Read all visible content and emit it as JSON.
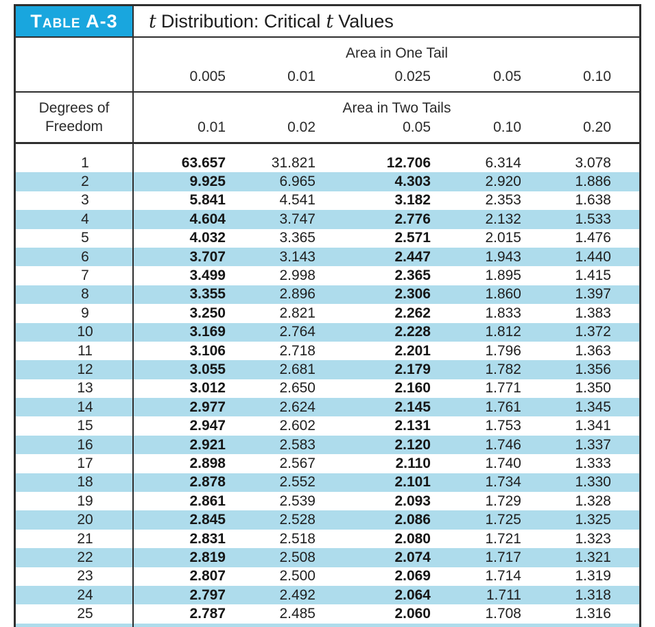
{
  "colors": {
    "badge_bg": "#19a6de",
    "stripe": "#aedcec",
    "border": "#2e2e2e",
    "text": "#232323"
  },
  "table": {
    "badge": "Table A-3",
    "title": {
      "t1": "t",
      "mid": "Distribution: Critical",
      "t2": "t",
      "end": "Values"
    },
    "header": {
      "one_tail_label": "Area in One Tail",
      "one_tail_values": [
        "0.005",
        "0.01",
        "0.025",
        "0.05",
        "0.10"
      ],
      "df_label": [
        "Degrees of",
        "Freedom"
      ],
      "two_tail_label": "Area in Two Tails",
      "two_tail_values": [
        "0.01",
        "0.02",
        "0.05",
        "0.10",
        "0.20"
      ]
    },
    "columns_bold": [
      true,
      false,
      true,
      false,
      false
    ],
    "rows": [
      {
        "df": "1",
        "values": [
          "63.657",
          "31.821",
          "12.706",
          "6.314",
          "3.078"
        ]
      },
      {
        "df": "2",
        "values": [
          "9.925",
          "6.965",
          "4.303",
          "2.920",
          "1.886"
        ]
      },
      {
        "df": "3",
        "values": [
          "5.841",
          "4.541",
          "3.182",
          "2.353",
          "1.638"
        ]
      },
      {
        "df": "4",
        "values": [
          "4.604",
          "3.747",
          "2.776",
          "2.132",
          "1.533"
        ]
      },
      {
        "df": "5",
        "values": [
          "4.032",
          "3.365",
          "2.571",
          "2.015",
          "1.476"
        ]
      },
      {
        "df": "6",
        "values": [
          "3.707",
          "3.143",
          "2.447",
          "1.943",
          "1.440"
        ]
      },
      {
        "df": "7",
        "values": [
          "3.499",
          "2.998",
          "2.365",
          "1.895",
          "1.415"
        ]
      },
      {
        "df": "8",
        "values": [
          "3.355",
          "2.896",
          "2.306",
          "1.860",
          "1.397"
        ]
      },
      {
        "df": "9",
        "values": [
          "3.250",
          "2.821",
          "2.262",
          "1.833",
          "1.383"
        ]
      },
      {
        "df": "10",
        "values": [
          "3.169",
          "2.764",
          "2.228",
          "1.812",
          "1.372"
        ]
      },
      {
        "df": "11",
        "values": [
          "3.106",
          "2.718",
          "2.201",
          "1.796",
          "1.363"
        ]
      },
      {
        "df": "12",
        "values": [
          "3.055",
          "2.681",
          "2.179",
          "1.782",
          "1.356"
        ]
      },
      {
        "df": "13",
        "values": [
          "3.012",
          "2.650",
          "2.160",
          "1.771",
          "1.350"
        ]
      },
      {
        "df": "14",
        "values": [
          "2.977",
          "2.624",
          "2.145",
          "1.761",
          "1.345"
        ]
      },
      {
        "df": "15",
        "values": [
          "2.947",
          "2.602",
          "2.131",
          "1.753",
          "1.341"
        ]
      },
      {
        "df": "16",
        "values": [
          "2.921",
          "2.583",
          "2.120",
          "1.746",
          "1.337"
        ]
      },
      {
        "df": "17",
        "values": [
          "2.898",
          "2.567",
          "2.110",
          "1.740",
          "1.333"
        ]
      },
      {
        "df": "18",
        "values": [
          "2.878",
          "2.552",
          "2.101",
          "1.734",
          "1.330"
        ]
      },
      {
        "df": "19",
        "values": [
          "2.861",
          "2.539",
          "2.093",
          "1.729",
          "1.328"
        ]
      },
      {
        "df": "20",
        "values": [
          "2.845",
          "2.528",
          "2.086",
          "1.725",
          "1.325"
        ]
      },
      {
        "df": "21",
        "values": [
          "2.831",
          "2.518",
          "2.080",
          "1.721",
          "1.323"
        ]
      },
      {
        "df": "22",
        "values": [
          "2.819",
          "2.508",
          "2.074",
          "1.717",
          "1.321"
        ]
      },
      {
        "df": "23",
        "values": [
          "2.807",
          "2.500",
          "2.069",
          "1.714",
          "1.319"
        ]
      },
      {
        "df": "24",
        "values": [
          "2.797",
          "2.492",
          "2.064",
          "1.711",
          "1.318"
        ]
      },
      {
        "df": "25",
        "values": [
          "2.787",
          "2.485",
          "2.060",
          "1.708",
          "1.316"
        ]
      }
    ]
  }
}
